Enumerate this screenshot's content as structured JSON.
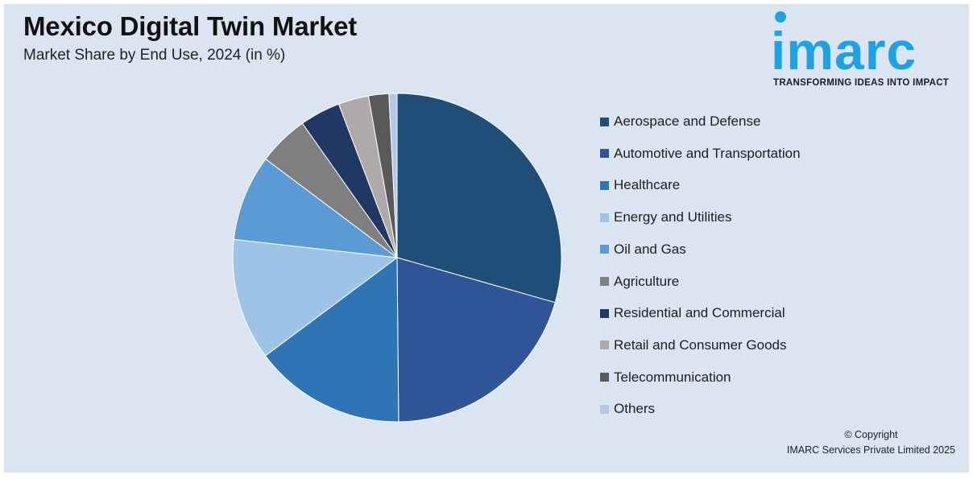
{
  "header": {
    "title": "Mexico Digital Twin Market",
    "subtitle": "Market Share by End Use, 2024 (in %)"
  },
  "logo": {
    "wordmark": "imarc",
    "tagline": "TRANSFORMING IDEAS INTO IMPACT",
    "color": "#1ea2e6"
  },
  "chart_data": {
    "type": "pie",
    "title": "Mexico Digital Twin Market",
    "subtitle": "Market Share by End Use, 2024 (in %)",
    "legend_position": "right",
    "unit": "%",
    "slices": [
      {
        "label": "Aerospace and Defense",
        "value": 29.5,
        "color": "#1f4e79"
      },
      {
        "label": "Automotive and Transportation",
        "value": 20.5,
        "color": "#2f5597"
      },
      {
        "label": "Healthcare",
        "value": 15,
        "color": "#2e75b6"
      },
      {
        "label": "Energy and Utilities",
        "value": 12,
        "color": "#9dc3e6"
      },
      {
        "label": "Oil and Gas",
        "value": 8.5,
        "color": "#5b9bd5"
      },
      {
        "label": "Agriculture",
        "value": 5,
        "color": "#7f7f7f"
      },
      {
        "label": "Residential and Commercial",
        "value": 4,
        "color": "#203864"
      },
      {
        "label": "Retail and Consumer Goods",
        "value": 3,
        "color": "#aeaaaa"
      },
      {
        "label": "Telecommunication",
        "value": 2,
        "color": "#595959"
      },
      {
        "label": "Others",
        "value": 0.8,
        "color": "#b4c7e7"
      }
    ]
  },
  "footer": {
    "copyright_line1": "© Copyright",
    "copyright_line2": "IMARC Services Private Limited 2025"
  }
}
